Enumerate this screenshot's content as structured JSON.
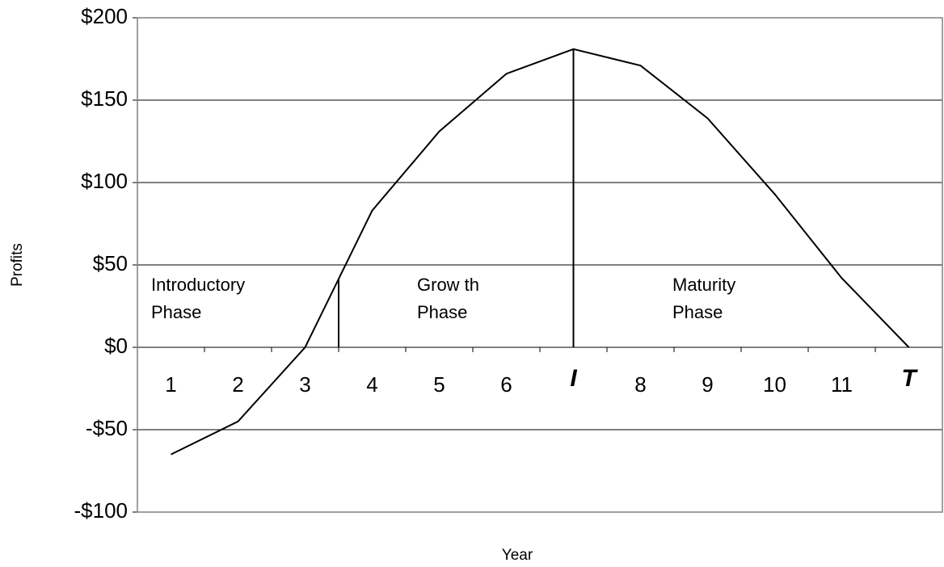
{
  "chart_data": {
    "type": "line",
    "categories": [
      "1",
      "2",
      "3",
      "4",
      "5",
      "6",
      "I",
      "8",
      "9",
      "10",
      "11",
      "T"
    ],
    "values": [
      -65,
      -45,
      0,
      83,
      131,
      166,
      181,
      171,
      139,
      93,
      42,
      0
    ],
    "color": "#000000",
    "ylim": [
      -100,
      200
    ],
    "yticks": [
      {
        "value": -100,
        "label": "-$100"
      },
      {
        "value": -50,
        "label": "-$50"
      },
      {
        "value": 0,
        "label": "$0"
      },
      {
        "value": 50,
        "label": "$50"
      },
      {
        "value": 100,
        "label": "$100"
      },
      {
        "value": 150,
        "label": "$150"
      },
      {
        "value": 200,
        "label": "$200"
      }
    ],
    "grid": true,
    "xlabel": "Year",
    "ylabel": "Profits",
    "annotations": [
      [
        "Introductory",
        "Phase"
      ],
      [
        "Grow th",
        "Phase"
      ],
      [
        "Maturity",
        "Phase"
      ]
    ]
  }
}
